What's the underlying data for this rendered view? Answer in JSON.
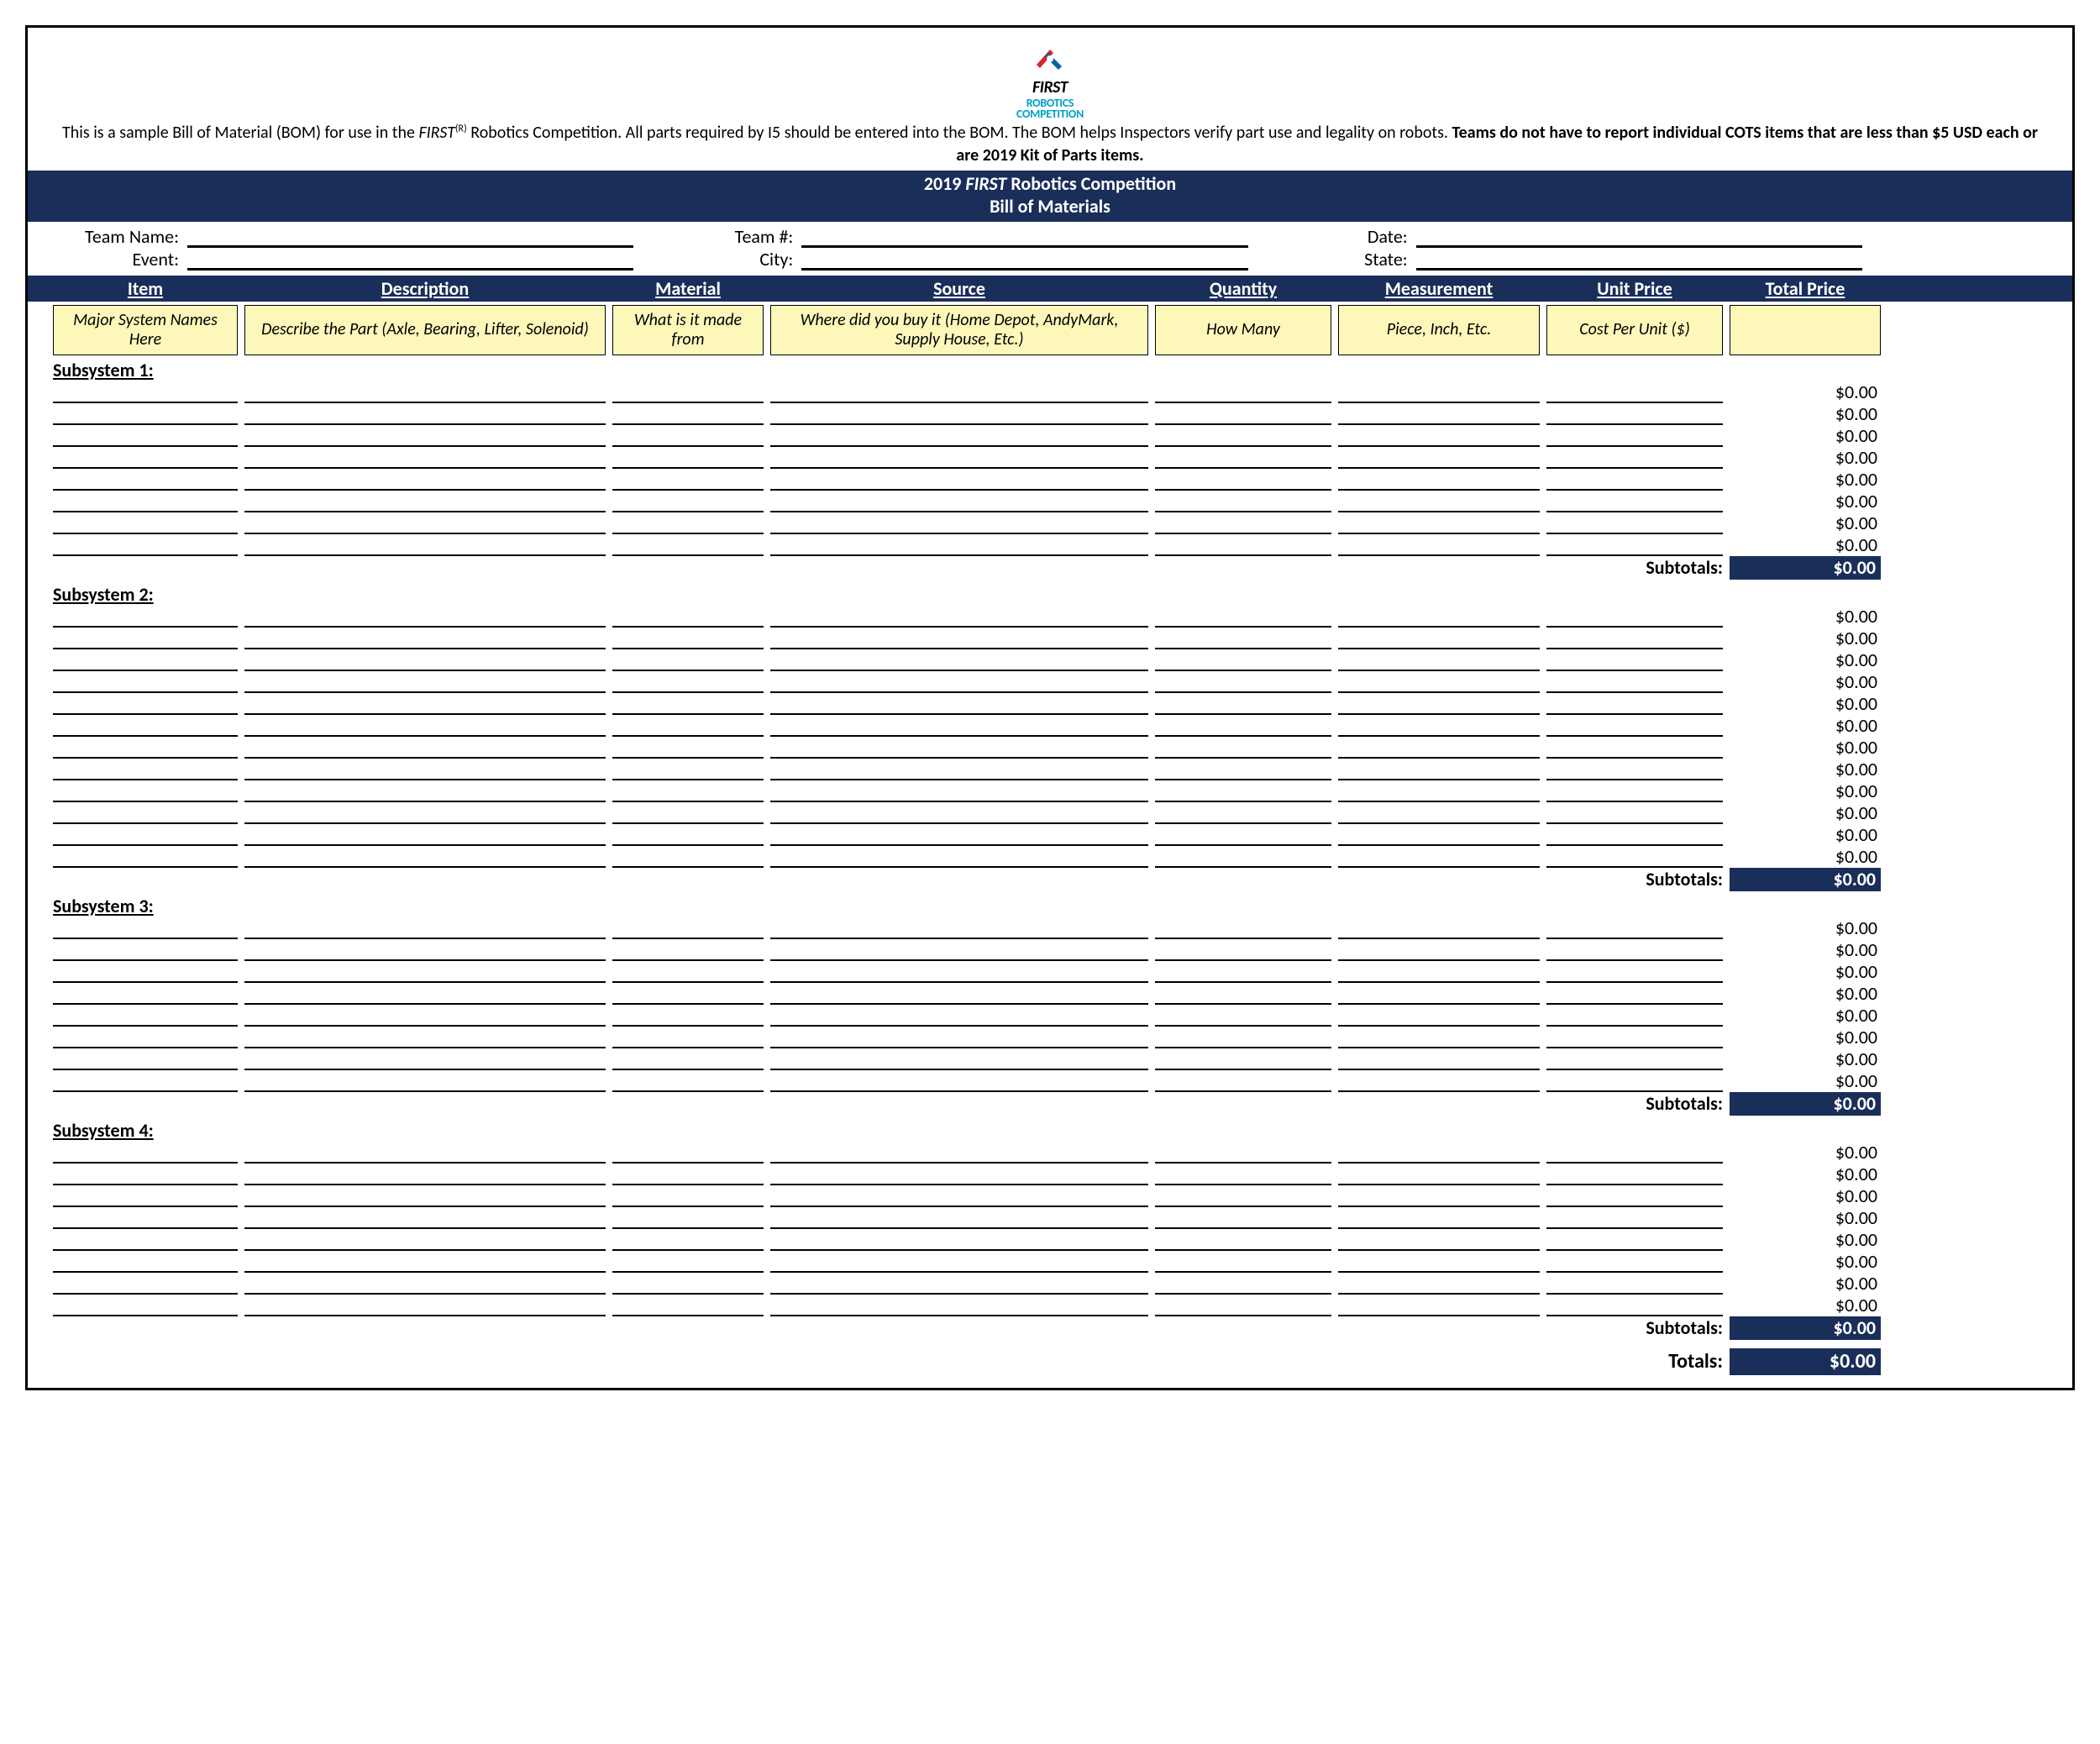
{
  "colors": {
    "navy": "#1a2e5a",
    "help_bg": "#fdf8ba",
    "logo_teal": "#00a0c6",
    "logo_red": "#d8242c",
    "logo_blue": "#0064a4",
    "border": "#000000",
    "white": "#ffffff"
  },
  "logo": {
    "line1": "FIRST",
    "line2": "ROBOTICS",
    "line3": "COMPETITION"
  },
  "intro": {
    "pre": "This is a sample Bill of Material (BOM) for use in the ",
    "first_word": "FIRST",
    "sup": "(R)",
    "mid": " Robotics Competition. All parts required by I5 should be entered into the BOM. The BOM helps Inspectors verify part use and legality on robots. ",
    "bold": "Teams do not have to report individual COTS items that are less than $5 USD each or are 2019 Kit of Parts items."
  },
  "titlebar": {
    "line1_pre": "2019 ",
    "line1_em": "FIRST",
    "line1_post": " Robotics Competition",
    "line2": "Bill of Materials"
  },
  "info": {
    "team_name": "Team Name:",
    "team_num": "Team #:",
    "date": "Date:",
    "event": "Event:",
    "city": "City:",
    "state": "State:"
  },
  "headers": {
    "item": "Item",
    "desc": "Description",
    "material": "Material",
    "source": "Source",
    "qty": "Quantity",
    "meas": "Measurement",
    "unit": "Unit Price",
    "total": "Total Price"
  },
  "help": {
    "item": "Major System Names Here",
    "desc": "Describe the Part\n(Axle, Bearing, Lifter, Solenoid)",
    "material": "What is it made from",
    "source": "Where did you buy it\n(Home Depot, AndyMark, Supply House, Etc.)",
    "qty": "How Many",
    "meas": "Piece, Inch, Etc.",
    "unit": "Cost Per Unit ($)"
  },
  "subtotal_label": "Subtotals:",
  "totals_label": "Totals:",
  "zero": "$0.00",
  "subsystems": [
    {
      "label": "Subsystem 1:",
      "rows": 8,
      "subtotal": "$0.00"
    },
    {
      "label": "Subsystem 2:",
      "rows": 12,
      "subtotal": "$0.00"
    },
    {
      "label": "Subsystem 3:",
      "rows": 8,
      "subtotal": "$0.00"
    },
    {
      "label": "Subsystem 4:",
      "rows": 8,
      "subtotal": "$0.00"
    }
  ],
  "grand_total": "$0.00"
}
